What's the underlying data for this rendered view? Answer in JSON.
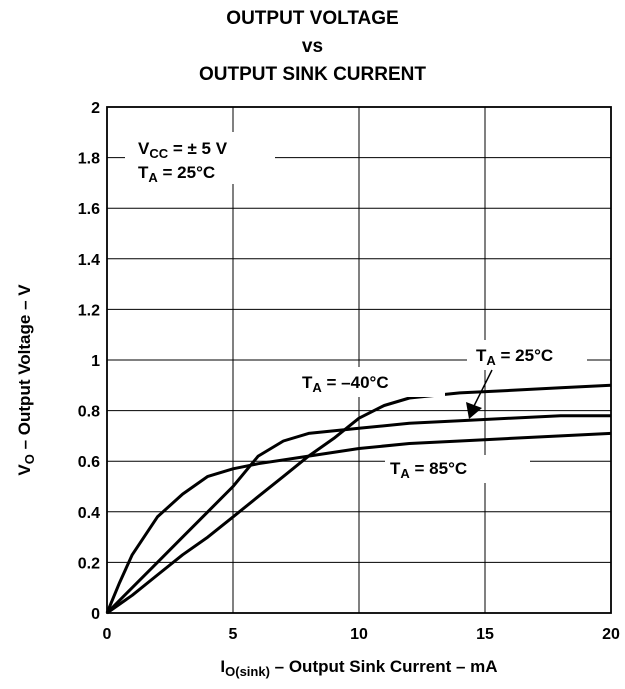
{
  "title": [
    "OUTPUT VOLTAGE",
    "vs",
    "OUTPUT SINK CURRENT"
  ],
  "chart_data": {
    "type": "line",
    "xlabel": {
      "main": "I",
      "sub": "O(sink)",
      "rest": " – Output Sink Current – mA"
    },
    "ylabel": {
      "main": "V",
      "sub": "O",
      "rest": " – Output Voltage – V"
    },
    "xlim": [
      0,
      20
    ],
    "ylim": [
      0,
      2
    ],
    "xticks": [
      0,
      5,
      10,
      15,
      20
    ],
    "yticks": [
      0,
      0.2,
      0.4,
      0.6,
      0.8,
      1,
      1.2,
      1.4,
      1.6,
      1.8,
      2
    ],
    "ytick_labels": [
      "0",
      "0.2",
      "0.4",
      "0.6",
      "0.8",
      "1",
      "1.2",
      "1.4",
      "1.6",
      "1.8",
      "2"
    ],
    "grid": true,
    "conditions": [
      {
        "main": "V",
        "sub": "CC",
        "rest": " = ± 5 V"
      },
      {
        "main": "T",
        "sub": "A",
        "rest": " = 25°C"
      }
    ],
    "series": [
      {
        "name": {
          "main": "T",
          "sub": "A",
          "rest": " = –40°C"
        },
        "x": [
          0,
          1,
          2,
          3,
          4,
          5,
          6,
          7,
          8,
          9,
          10,
          11,
          12,
          14,
          16,
          18,
          20
        ],
        "y": [
          0,
          0.07,
          0.15,
          0.23,
          0.3,
          0.38,
          0.46,
          0.54,
          0.62,
          0.69,
          0.77,
          0.82,
          0.85,
          0.87,
          0.88,
          0.89,
          0.9
        ]
      },
      {
        "name": {
          "main": "T",
          "sub": "A",
          "rest": " = 25°C"
        },
        "x": [
          0,
          1,
          2,
          3,
          4,
          5,
          6,
          7,
          8,
          10,
          12,
          14,
          16,
          18,
          20
        ],
        "y": [
          0,
          0.1,
          0.2,
          0.3,
          0.4,
          0.5,
          0.62,
          0.68,
          0.71,
          0.73,
          0.75,
          0.76,
          0.77,
          0.78,
          0.78
        ]
      },
      {
        "name": {
          "main": "T",
          "sub": "A",
          "rest": " = 85°C"
        },
        "x": [
          0,
          0.5,
          1,
          2,
          3,
          4,
          5,
          6,
          8,
          10,
          12,
          14,
          16,
          18,
          20
        ],
        "y": [
          0,
          0.12,
          0.23,
          0.38,
          0.47,
          0.54,
          0.57,
          0.59,
          0.62,
          0.65,
          0.67,
          0.68,
          0.69,
          0.7,
          0.71
        ]
      }
    ]
  }
}
